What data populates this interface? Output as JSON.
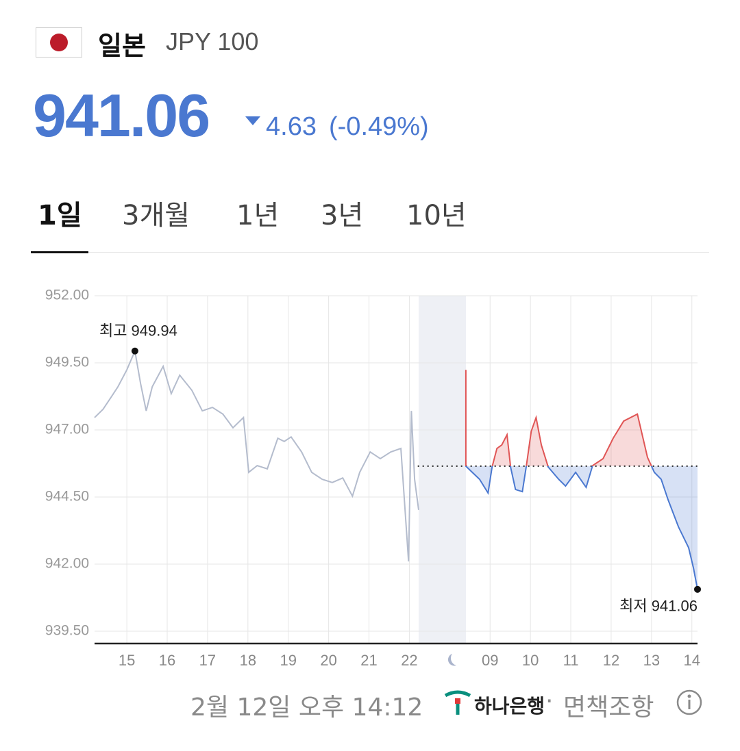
{
  "header": {
    "country": "일본",
    "currency": "JPY 100"
  },
  "price": {
    "value": "941.06",
    "change": "4.63",
    "change_percent": "(-0.49%)"
  },
  "tabs": [
    "1일",
    "3개월",
    "1년",
    "3년",
    "10년"
  ],
  "chart_data": {
    "type": "line",
    "xlim": [
      -0.8,
      14.14
    ],
    "ylim": [
      939.5,
      952
    ],
    "yticks": [
      {
        "value": 952,
        "label": "952.00"
      },
      {
        "value": 949.5,
        "label": "949.50"
      },
      {
        "value": 947,
        "label": "947.00"
      },
      {
        "value": 944.5,
        "label": "944.50"
      },
      {
        "value": 942,
        "label": "942.00"
      },
      {
        "value": 939.5,
        "label": "939.50"
      }
    ],
    "xticks": [
      {
        "value": 0,
        "label": "15"
      },
      {
        "value": 1,
        "label": "16"
      },
      {
        "value": 2,
        "label": "17"
      },
      {
        "value": 3,
        "label": "18"
      },
      {
        "value": 4,
        "label": "19"
      },
      {
        "value": 5,
        "label": "20"
      },
      {
        "value": 6,
        "label": "21"
      },
      {
        "value": 7,
        "label": "22"
      },
      {
        "value": 9,
        "label": "09"
      },
      {
        "value": 10,
        "label": "10"
      },
      {
        "value": 11,
        "label": "11"
      },
      {
        "value": 12,
        "label": "12"
      },
      {
        "value": 13,
        "label": "13"
      },
      {
        "value": 14,
        "label": "14"
      }
    ],
    "grid": true,
    "reference_line": 945.65,
    "series": [
      {
        "color": "#b4bccd",
        "x": [
          -0.8,
          -0.59,
          -0.39,
          -0.22,
          0,
          0.2,
          0.34,
          0.48,
          0.63,
          0.9,
          1.1,
          1.31,
          1.61,
          1.87,
          2.12,
          2.38,
          2.63,
          2.89,
          3.02,
          3.23,
          3.48,
          3.74,
          3.9,
          4.07,
          4.33,
          4.58,
          4.84,
          5.09,
          5.35,
          5.59,
          5.77,
          6.03,
          6.28,
          6.54,
          6.79,
          6.98,
          7.05,
          7.13,
          7.23
        ],
        "values": [
          947.46,
          947.77,
          948.22,
          948.61,
          949.24,
          949.94,
          948.73,
          947.71,
          948.61,
          949.37,
          948.35,
          949.04,
          948.48,
          947.71,
          947.84,
          947.59,
          947.08,
          947.46,
          945.42,
          945.67,
          945.55,
          946.69,
          946.57,
          946.74,
          946.18,
          945.42,
          945.16,
          945.04,
          945.21,
          944.53,
          945.42,
          946.18,
          945.93,
          946.18,
          946.31,
          942.1,
          947.71,
          945.16,
          944.02
        ]
      },
      {
        "color": "#4a78d0",
        "color_above": "#e05555",
        "x": [
          8.4,
          8.4,
          8.74,
          8.95,
          9.05,
          9.17,
          9.29,
          9.42,
          9.51,
          9.63,
          9.8,
          9.9,
          10.02,
          10.14,
          10.27,
          10.44,
          10.7,
          10.87,
          11.12,
          11.38,
          11.54,
          11.8,
          12.05,
          12.31,
          12.65,
          12.9,
          13.07,
          13.24,
          13.41,
          13.67,
          13.92,
          14.04,
          14.14
        ],
        "values": [
          949.24,
          945.65,
          945.16,
          944.65,
          945.62,
          946.31,
          946.44,
          946.82,
          945.6,
          944.78,
          944.7,
          945.67,
          946.95,
          947.46,
          946.44,
          945.62,
          945.16,
          944.91,
          945.42,
          944.86,
          945.67,
          945.93,
          946.69,
          947.33,
          947.59,
          945.98,
          945.42,
          945.16,
          944.4,
          943.38,
          942.61,
          941.85,
          941.06
        ]
      }
    ],
    "annotations": [
      {
        "text": "최고 949.94",
        "value": 949.94
      },
      {
        "text": "최저 941.06",
        "value": 941.06
      }
    ]
  },
  "footer": {
    "timestamp": "2월 12일 오후 14:12",
    "bank": "하나은행",
    "separator": "·",
    "disclaimer": "면책조항"
  }
}
